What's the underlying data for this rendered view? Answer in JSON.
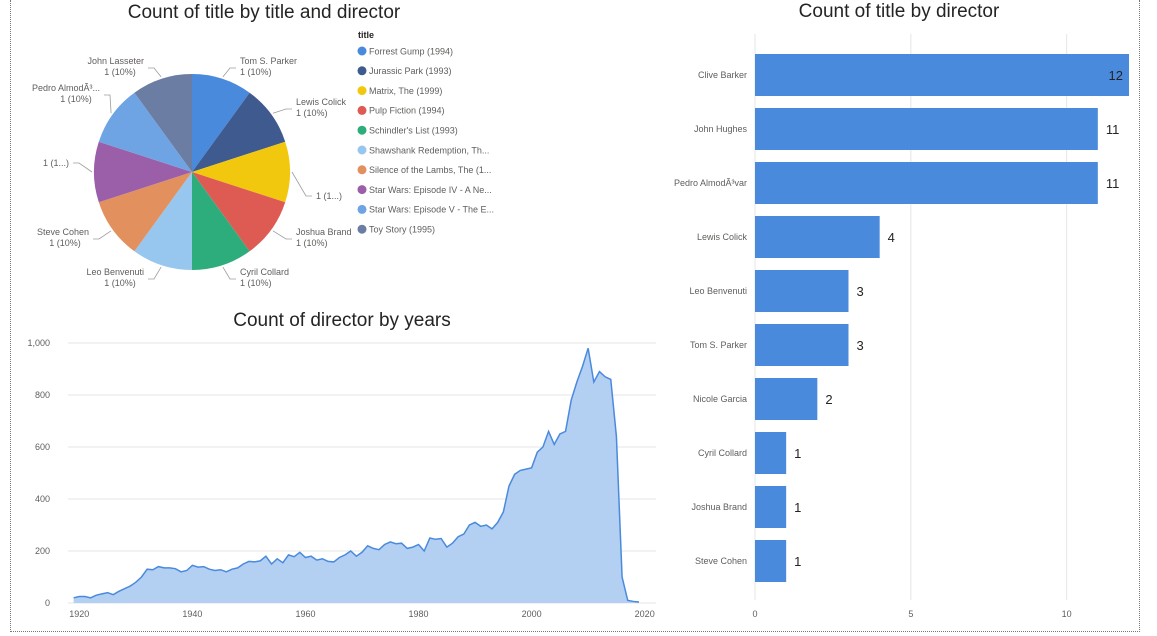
{
  "colors": {
    "bar": "#4A8ADD",
    "area_fill": "#B3CFF2",
    "area_line": "#4A8ADD",
    "grid": "#E6E6E6",
    "axis_text": "#605E5C",
    "title_text": "#252423"
  },
  "chart_data": [
    {
      "type": "pie",
      "title": "Count of title by title and director",
      "legend_title": "title",
      "legend_position": "right",
      "slices": [
        {
          "legend": "Forrest Gump (1994)",
          "label": "Tom S. Parker",
          "value_label": "1 (10%)",
          "value": 1,
          "color": "#4A8ADD"
        },
        {
          "legend": "Jurassic Park (1993)",
          "label": "Lewis Colick",
          "value_label": "1 (10%)",
          "value": 1,
          "color": "#3F5A8E"
        },
        {
          "legend": "Matrix, The (1999)",
          "label": "",
          "value_label": "1 (1...)",
          "value": 1,
          "color": "#F2C80F"
        },
        {
          "legend": "Pulp Fiction (1994)",
          "label": "Joshua Brand",
          "value_label": "1 (10%)",
          "value": 1,
          "color": "#DE5B54"
        },
        {
          "legend": "Schindler's List (1993)",
          "label": "Cyril Collard",
          "value_label": "1 (10%)",
          "value": 1,
          "color": "#2EAD7C"
        },
        {
          "legend": "Shawshank Redemption, Th...",
          "label": "Leo Benvenuti",
          "value_label": "1 (10%)",
          "value": 1,
          "color": "#97C7EF"
        },
        {
          "legend": "Silence of the Lambs, The (1...",
          "label": "Steve Cohen",
          "value_label": "1 (10%)",
          "value": 1,
          "color": "#E1905E"
        },
        {
          "legend": "Star Wars: Episode IV - A Ne...",
          "label": "",
          "value_label": "1 (1...)",
          "value": 1,
          "color": "#9A5FA8"
        },
        {
          "legend": "Star Wars: Episode V - The E...",
          "label": "Pedro AlmodÃ³...",
          "value_label": "1 (10%)",
          "value": 1,
          "color": "#6EA4E3"
        },
        {
          "legend": "Toy Story (1995)",
          "label": "John Lasseter",
          "value_label": "1 (10%)",
          "value": 1,
          "color": "#6C7DA4"
        }
      ]
    },
    {
      "type": "bar",
      "orientation": "horizontal",
      "title": "Count of title by director",
      "categories": [
        "Clive Barker",
        "John Hughes",
        "Pedro AlmodÃ³var",
        "Lewis Colick",
        "Leo Benvenuti",
        "Tom S. Parker",
        "Nicole Garcia",
        "Cyril Collard",
        "Joshua Brand",
        "Steve Cohen"
      ],
      "values": [
        12,
        11,
        11,
        4,
        3,
        3,
        2,
        1,
        1,
        1
      ],
      "data_labels": [
        "12",
        "11",
        "11",
        "4",
        "3",
        "3",
        "2",
        "1",
        "1",
        "1"
      ],
      "xlim": [
        0,
        12
      ],
      "x_ticks": [
        0,
        5,
        10
      ],
      "x_tick_labels": [
        "0",
        "5",
        "10"
      ],
      "grid": true
    },
    {
      "type": "area",
      "title": "Count of director by years",
      "xlim": [
        1918,
        2022
      ],
      "ylim": [
        0,
        1000
      ],
      "x_ticks": [
        1920,
        1940,
        1960,
        1980,
        2000,
        2020
      ],
      "x_tick_labels": [
        "1920",
        "1940",
        "1960",
        "1980",
        "2000",
        "2020"
      ],
      "y_ticks": [
        0,
        200,
        400,
        600,
        800,
        1000
      ],
      "y_tick_labels": [
        "0",
        "200",
        "400",
        "600",
        "800",
        "1,000"
      ],
      "grid": true,
      "x": [
        1919,
        1920,
        1921,
        1922,
        1923,
        1924,
        1925,
        1926,
        1927,
        1928,
        1929,
        1930,
        1931,
        1932,
        1933,
        1934,
        1935,
        1936,
        1937,
        1938,
        1939,
        1940,
        1941,
        1942,
        1943,
        1944,
        1945,
        1946,
        1947,
        1948,
        1949,
        1950,
        1951,
        1952,
        1953,
        1954,
        1955,
        1956,
        1957,
        1958,
        1959,
        1960,
        1961,
        1962,
        1963,
        1964,
        1965,
        1966,
        1967,
        1968,
        1969,
        1970,
        1971,
        1972,
        1973,
        1974,
        1975,
        1976,
        1977,
        1978,
        1979,
        1980,
        1981,
        1982,
        1983,
        1984,
        1985,
        1986,
        1987,
        1988,
        1989,
        1990,
        1991,
        1992,
        1993,
        1994,
        1995,
        1996,
        1997,
        1998,
        1999,
        2000,
        2001,
        2002,
        2003,
        2004,
        2005,
        2006,
        2007,
        2008,
        2009,
        2010,
        2011,
        2012,
        2013,
        2014,
        2015,
        2016,
        2017,
        2018,
        2019
      ],
      "y": [
        20,
        25,
        25,
        20,
        30,
        35,
        40,
        32,
        45,
        55,
        65,
        80,
        100,
        130,
        128,
        140,
        135,
        135,
        132,
        120,
        125,
        145,
        138,
        140,
        130,
        125,
        128,
        120,
        130,
        135,
        150,
        160,
        158,
        162,
        180,
        150,
        170,
        155,
        185,
        178,
        195,
        175,
        180,
        165,
        170,
        160,
        158,
        175,
        185,
        200,
        180,
        195,
        220,
        210,
        205,
        225,
        235,
        228,
        230,
        210,
        215,
        225,
        200,
        250,
        245,
        248,
        215,
        230,
        255,
        265,
        300,
        310,
        295,
        300,
        285,
        310,
        350,
        450,
        495,
        510,
        515,
        520,
        580,
        600,
        660,
        610,
        650,
        660,
        780,
        850,
        910,
        980,
        850,
        890,
        870,
        860,
        640,
        100,
        10,
        6,
        4
      ]
    }
  ]
}
